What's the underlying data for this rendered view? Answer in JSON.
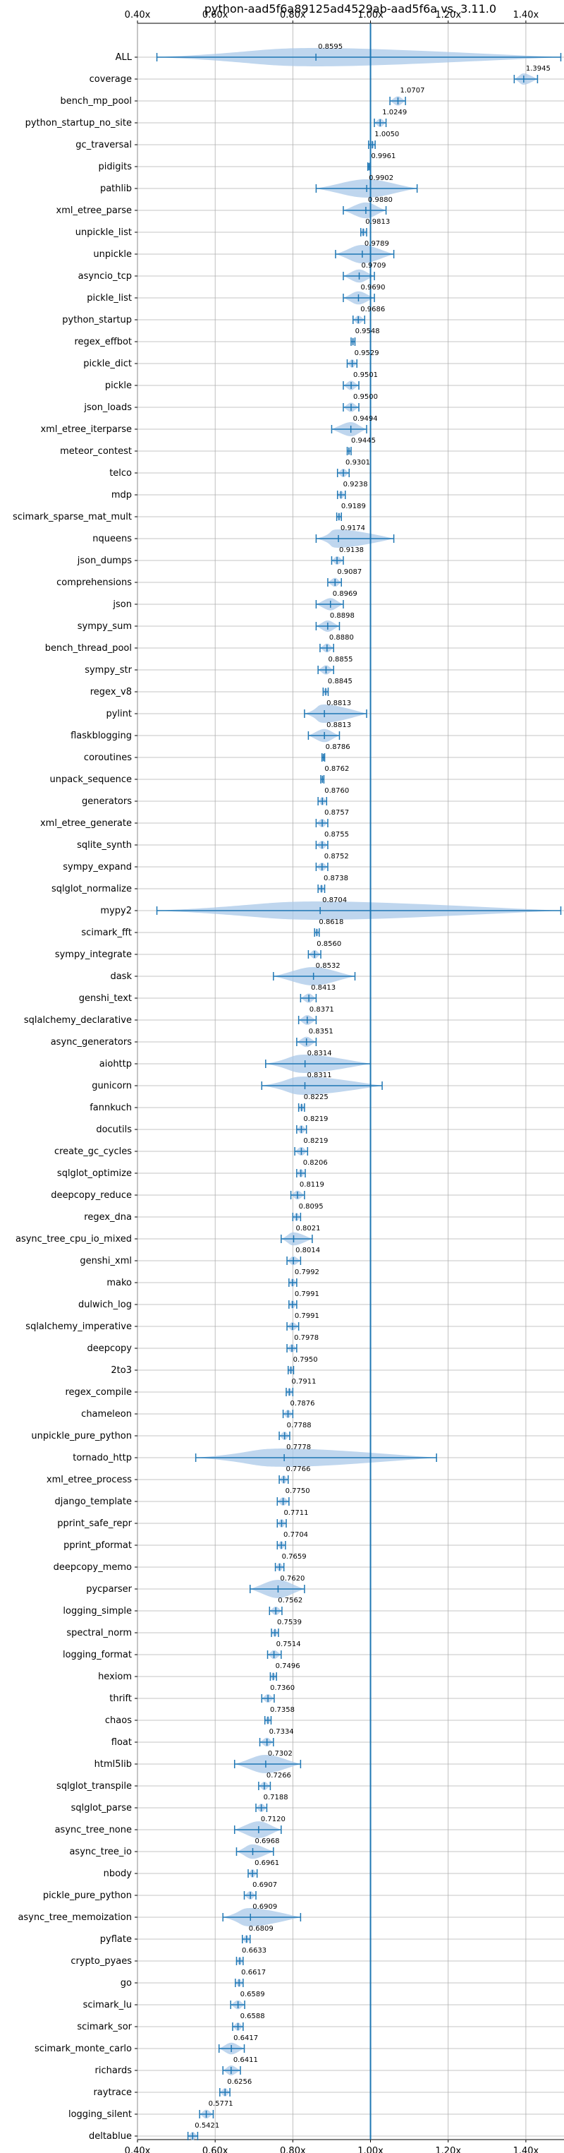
{
  "chart_data": {
    "type": "violin",
    "title": "python-aad5f6a89125ad4529ab-aad5f6a vs. 3.11.0",
    "xlabel": "",
    "ylabel": "",
    "xlim": [
      0.4,
      1.5
    ],
    "xticks": [
      {
        "value": 0.4,
        "label": "0.40x"
      },
      {
        "value": 0.6,
        "label": "0.60x"
      },
      {
        "value": 0.8,
        "label": "0.80x"
      },
      {
        "value": 1.0,
        "label": "1.00x"
      },
      {
        "value": 1.2,
        "label": "1.20x"
      },
      {
        "value": 1.4,
        "label": "1.40x"
      }
    ],
    "reference_line": 1.0,
    "grid": true,
    "colors": {
      "violin": "#a9c8e8",
      "line": "#1f77b4",
      "reference": "#1f77b4"
    },
    "benchmarks": [
      {
        "name": "ALL",
        "value": 0.8595,
        "label": "0.8595",
        "min": 0.45,
        "max": 1.49
      },
      {
        "name": "coverage",
        "value": 1.3945,
        "label": "1.3945",
        "min": 1.37,
        "max": 1.43
      },
      {
        "name": "bench_mp_pool",
        "value": 1.0707,
        "label": "1.0707",
        "min": 1.05,
        "max": 1.09
      },
      {
        "name": "python_startup_no_site",
        "value": 1.0249,
        "label": "1.0249",
        "min": 1.01,
        "max": 1.04
      },
      {
        "name": "gc_traversal",
        "value": 1.005,
        "label": "1.0050",
        "min": 0.995,
        "max": 1.012
      },
      {
        "name": "pidigits",
        "value": 0.9961,
        "label": "0.9961",
        "min": 0.993,
        "max": 0.999
      },
      {
        "name": "pathlib",
        "value": 0.9902,
        "label": "0.9902",
        "min": 0.86,
        "max": 1.12
      },
      {
        "name": "xml_etree_parse",
        "value": 0.988,
        "label": "0.9880",
        "min": 0.93,
        "max": 1.04
      },
      {
        "name": "unpickle_list",
        "value": 0.9813,
        "label": "0.9813",
        "min": 0.975,
        "max": 0.99
      },
      {
        "name": "unpickle",
        "value": 0.9789,
        "label": "0.9789",
        "min": 0.91,
        "max": 1.06
      },
      {
        "name": "asyncio_tcp",
        "value": 0.9709,
        "label": "0.9709",
        "min": 0.93,
        "max": 1.01
      },
      {
        "name": "pickle_list",
        "value": 0.969,
        "label": "0.9690",
        "min": 0.93,
        "max": 1.01
      },
      {
        "name": "python_startup",
        "value": 0.9686,
        "label": "0.9686",
        "min": 0.955,
        "max": 0.985
      },
      {
        "name": "regex_effbot",
        "value": 0.9548,
        "label": "0.9548",
        "min": 0.95,
        "max": 0.96
      },
      {
        "name": "pickle_dict",
        "value": 0.9529,
        "label": "0.9529",
        "min": 0.94,
        "max": 0.965
      },
      {
        "name": "pickle",
        "value": 0.9501,
        "label": "0.9501",
        "min": 0.93,
        "max": 0.97
      },
      {
        "name": "json_loads",
        "value": 0.95,
        "label": "0.9500",
        "min": 0.93,
        "max": 0.97
      },
      {
        "name": "xml_etree_iterparse",
        "value": 0.9494,
        "label": "0.9494",
        "min": 0.9,
        "max": 0.99
      },
      {
        "name": "meteor_contest",
        "value": 0.9445,
        "label": "0.9445",
        "min": 0.94,
        "max": 0.95
      },
      {
        "name": "telco",
        "value": 0.9301,
        "label": "0.9301",
        "min": 0.915,
        "max": 0.945
      },
      {
        "name": "mdp",
        "value": 0.9238,
        "label": "0.9238",
        "min": 0.915,
        "max": 0.935
      },
      {
        "name": "scimark_sparse_mat_mult",
        "value": 0.9189,
        "label": "0.9189",
        "min": 0.913,
        "max": 0.925
      },
      {
        "name": "nqueens",
        "value": 0.9174,
        "label": "0.9174",
        "min": 0.86,
        "max": 1.06
      },
      {
        "name": "json_dumps",
        "value": 0.9138,
        "label": "0.9138",
        "min": 0.9,
        "max": 0.93
      },
      {
        "name": "comprehensions",
        "value": 0.9087,
        "label": "0.9087",
        "min": 0.89,
        "max": 0.925
      },
      {
        "name": "json",
        "value": 0.8969,
        "label": "0.8969",
        "min": 0.86,
        "max": 0.93
      },
      {
        "name": "sympy_sum",
        "value": 0.8898,
        "label": "0.8898",
        "min": 0.86,
        "max": 0.92
      },
      {
        "name": "bench_thread_pool",
        "value": 0.888,
        "label": "0.8880",
        "min": 0.87,
        "max": 0.905
      },
      {
        "name": "sympy_str",
        "value": 0.8855,
        "label": "0.8855",
        "min": 0.865,
        "max": 0.905
      },
      {
        "name": "regex_v8",
        "value": 0.8845,
        "label": "0.8845",
        "min": 0.878,
        "max": 0.891
      },
      {
        "name": "pylint",
        "value": 0.8813,
        "label": "0.8813",
        "min": 0.83,
        "max": 0.99
      },
      {
        "name": "flaskblogging",
        "value": 0.8813,
        "label": "0.8813",
        "min": 0.84,
        "max": 0.92
      },
      {
        "name": "coroutines",
        "value": 0.8786,
        "label": "0.8786",
        "min": 0.875,
        "max": 0.882
      },
      {
        "name": "unpack_sequence",
        "value": 0.8762,
        "label": "0.8762",
        "min": 0.872,
        "max": 0.88
      },
      {
        "name": "generators",
        "value": 0.876,
        "label": "0.8760",
        "min": 0.865,
        "max": 0.887
      },
      {
        "name": "xml_etree_generate",
        "value": 0.8757,
        "label": "0.8757",
        "min": 0.86,
        "max": 0.89
      },
      {
        "name": "sqlite_synth",
        "value": 0.8755,
        "label": "0.8755",
        "min": 0.86,
        "max": 0.89
      },
      {
        "name": "sympy_expand",
        "value": 0.8752,
        "label": "0.8752",
        "min": 0.86,
        "max": 0.89
      },
      {
        "name": "sqlglot_normalize",
        "value": 0.8738,
        "label": "0.8738",
        "min": 0.865,
        "max": 0.882
      },
      {
        "name": "mypy2",
        "value": 0.8704,
        "label": "0.8704",
        "min": 0.45,
        "max": 1.49
      },
      {
        "name": "scimark_fft",
        "value": 0.8618,
        "label": "0.8618",
        "min": 0.856,
        "max": 0.868
      },
      {
        "name": "sympy_integrate",
        "value": 0.856,
        "label": "0.8560",
        "min": 0.84,
        "max": 0.872
      },
      {
        "name": "dask",
        "value": 0.8532,
        "label": "0.8532",
        "min": 0.75,
        "max": 0.96
      },
      {
        "name": "genshi_text",
        "value": 0.8413,
        "label": "0.8413",
        "min": 0.82,
        "max": 0.86
      },
      {
        "name": "sqlalchemy_declarative",
        "value": 0.8371,
        "label": "0.8371",
        "min": 0.815,
        "max": 0.86
      },
      {
        "name": "async_generators",
        "value": 0.8351,
        "label": "0.8351",
        "min": 0.81,
        "max": 0.86
      },
      {
        "name": "aiohttp",
        "value": 0.8314,
        "label": "0.8314",
        "min": 0.73,
        "max": 1.0
      },
      {
        "name": "gunicorn",
        "value": 0.8311,
        "label": "0.8311",
        "min": 0.72,
        "max": 1.03
      },
      {
        "name": "fannkuch",
        "value": 0.8225,
        "label": "0.8225",
        "min": 0.815,
        "max": 0.83
      },
      {
        "name": "docutils",
        "value": 0.8219,
        "label": "0.8219",
        "min": 0.81,
        "max": 0.835
      },
      {
        "name": "create_gc_cycles",
        "value": 0.8219,
        "label": "0.8219",
        "min": 0.805,
        "max": 0.838
      },
      {
        "name": "sqlglot_optimize",
        "value": 0.8206,
        "label": "0.8206",
        "min": 0.81,
        "max": 0.832
      },
      {
        "name": "deepcopy_reduce",
        "value": 0.8119,
        "label": "0.8119",
        "min": 0.795,
        "max": 0.83
      },
      {
        "name": "regex_dna",
        "value": 0.8095,
        "label": "0.8095",
        "min": 0.8,
        "max": 0.82
      },
      {
        "name": "async_tree_cpu_io_mixed",
        "value": 0.8021,
        "label": "0.8021",
        "min": 0.77,
        "max": 0.85
      },
      {
        "name": "genshi_xml",
        "value": 0.8014,
        "label": "0.8014",
        "min": 0.785,
        "max": 0.82
      },
      {
        "name": "mako",
        "value": 0.7992,
        "label": "0.7992",
        "min": 0.79,
        "max": 0.81
      },
      {
        "name": "dulwich_log",
        "value": 0.7991,
        "label": "0.7991",
        "min": 0.79,
        "max": 0.81
      },
      {
        "name": "sqlalchemy_imperative",
        "value": 0.7991,
        "label": "0.7991",
        "min": 0.785,
        "max": 0.815
      },
      {
        "name": "deepcopy",
        "value": 0.7978,
        "label": "0.7978",
        "min": 0.785,
        "max": 0.81
      },
      {
        "name": "2to3",
        "value": 0.795,
        "label": "0.7950",
        "min": 0.788,
        "max": 0.802
      },
      {
        "name": "regex_compile",
        "value": 0.7911,
        "label": "0.7911",
        "min": 0.783,
        "max": 0.8
      },
      {
        "name": "chameleon",
        "value": 0.7876,
        "label": "0.7876",
        "min": 0.775,
        "max": 0.8
      },
      {
        "name": "unpickle_pure_python",
        "value": 0.7788,
        "label": "0.7788",
        "min": 0.765,
        "max": 0.792
      },
      {
        "name": "tornado_http",
        "value": 0.7778,
        "label": "0.7778",
        "min": 0.55,
        "max": 1.17
      },
      {
        "name": "xml_etree_process",
        "value": 0.7766,
        "label": "0.7766",
        "min": 0.765,
        "max": 0.788
      },
      {
        "name": "django_template",
        "value": 0.775,
        "label": "0.7750",
        "min": 0.76,
        "max": 0.79
      },
      {
        "name": "pprint_safe_repr",
        "value": 0.7711,
        "label": "0.7711",
        "min": 0.76,
        "max": 0.783
      },
      {
        "name": "pprint_pformat",
        "value": 0.7704,
        "label": "0.7704",
        "min": 0.76,
        "max": 0.781
      },
      {
        "name": "deepcopy_memo",
        "value": 0.7659,
        "label": "0.7659",
        "min": 0.755,
        "max": 0.777
      },
      {
        "name": "pycparser",
        "value": 0.762,
        "label": "0.7620",
        "min": 0.69,
        "max": 0.83
      },
      {
        "name": "logging_simple",
        "value": 0.7562,
        "label": "0.7562",
        "min": 0.74,
        "max": 0.772
      },
      {
        "name": "spectral_norm",
        "value": 0.7539,
        "label": "0.7539",
        "min": 0.745,
        "max": 0.763
      },
      {
        "name": "logging_format",
        "value": 0.7514,
        "label": "0.7514",
        "min": 0.735,
        "max": 0.77
      },
      {
        "name": "hexiom",
        "value": 0.7496,
        "label": "0.7496",
        "min": 0.742,
        "max": 0.758
      },
      {
        "name": "thrift",
        "value": 0.736,
        "label": "0.7360",
        "min": 0.72,
        "max": 0.752
      },
      {
        "name": "chaos",
        "value": 0.7358,
        "label": "0.7358",
        "min": 0.728,
        "max": 0.744
      },
      {
        "name": "float",
        "value": 0.7334,
        "label": "0.7334",
        "min": 0.715,
        "max": 0.75
      },
      {
        "name": "html5lib",
        "value": 0.7302,
        "label": "0.7302",
        "min": 0.65,
        "max": 0.82
      },
      {
        "name": "sqlglot_transpile",
        "value": 0.7266,
        "label": "0.7266",
        "min": 0.712,
        "max": 0.742
      },
      {
        "name": "sqlglot_parse",
        "value": 0.7188,
        "label": "0.7188",
        "min": 0.705,
        "max": 0.733
      },
      {
        "name": "async_tree_none",
        "value": 0.712,
        "label": "0.7120",
        "min": 0.65,
        "max": 0.77
      },
      {
        "name": "async_tree_io",
        "value": 0.6968,
        "label": "0.6968",
        "min": 0.655,
        "max": 0.75
      },
      {
        "name": "nbody",
        "value": 0.6961,
        "label": "0.6961",
        "min": 0.685,
        "max": 0.708
      },
      {
        "name": "pickle_pure_python",
        "value": 0.6907,
        "label": "0.6907",
        "min": 0.675,
        "max": 0.705
      },
      {
        "name": "async_tree_memoization",
        "value": 0.6909,
        "label": "0.6909",
        "min": 0.62,
        "max": 0.82
      },
      {
        "name": "pyflate",
        "value": 0.6809,
        "label": "0.6809",
        "min": 0.67,
        "max": 0.69
      },
      {
        "name": "crypto_pyaes",
        "value": 0.6633,
        "label": "0.6633",
        "min": 0.655,
        "max": 0.672
      },
      {
        "name": "go",
        "value": 0.6617,
        "label": "0.6617",
        "min": 0.652,
        "max": 0.672
      },
      {
        "name": "scimark_lu",
        "value": 0.6589,
        "label": "0.6589",
        "min": 0.64,
        "max": 0.676
      },
      {
        "name": "scimark_sor",
        "value": 0.6588,
        "label": "0.6588",
        "min": 0.645,
        "max": 0.672
      },
      {
        "name": "scimark_monte_carlo",
        "value": 0.6417,
        "label": "0.6417",
        "min": 0.61,
        "max": 0.675
      },
      {
        "name": "richards",
        "value": 0.6411,
        "label": "0.6411",
        "min": 0.62,
        "max": 0.665
      },
      {
        "name": "raytrace",
        "value": 0.6256,
        "label": "0.6256",
        "min": 0.612,
        "max": 0.638
      },
      {
        "name": "logging_silent",
        "value": 0.5771,
        "label": "0.5771",
        "min": 0.56,
        "max": 0.595
      },
      {
        "name": "deltablue",
        "value": 0.5421,
        "label": "0.5421",
        "min": 0.53,
        "max": 0.555
      }
    ]
  }
}
